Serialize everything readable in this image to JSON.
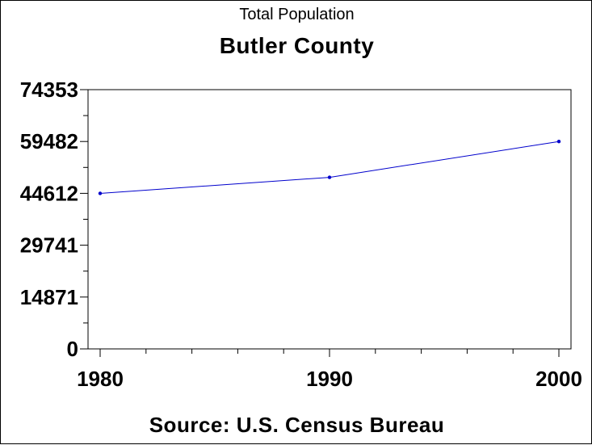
{
  "chart_data": {
    "type": "line",
    "title": "Total Population",
    "subtitle": "Butler County",
    "source": "Source: U.S. Census Bureau",
    "x": [
      1980,
      1990,
      2000
    ],
    "series": [
      {
        "values": [
          44600,
          49200,
          59482
        ]
      }
    ],
    "xlim": [
      1980,
      2000
    ],
    "ylim": [
      0,
      74353
    ],
    "xticks": [
      "1980",
      "1990",
      "2000"
    ],
    "yticks": [
      "0",
      "14871",
      "29741",
      "44612",
      "59482",
      "74353"
    ],
    "line_color": "#0000cc",
    "grid": false,
    "legend": "none"
  }
}
